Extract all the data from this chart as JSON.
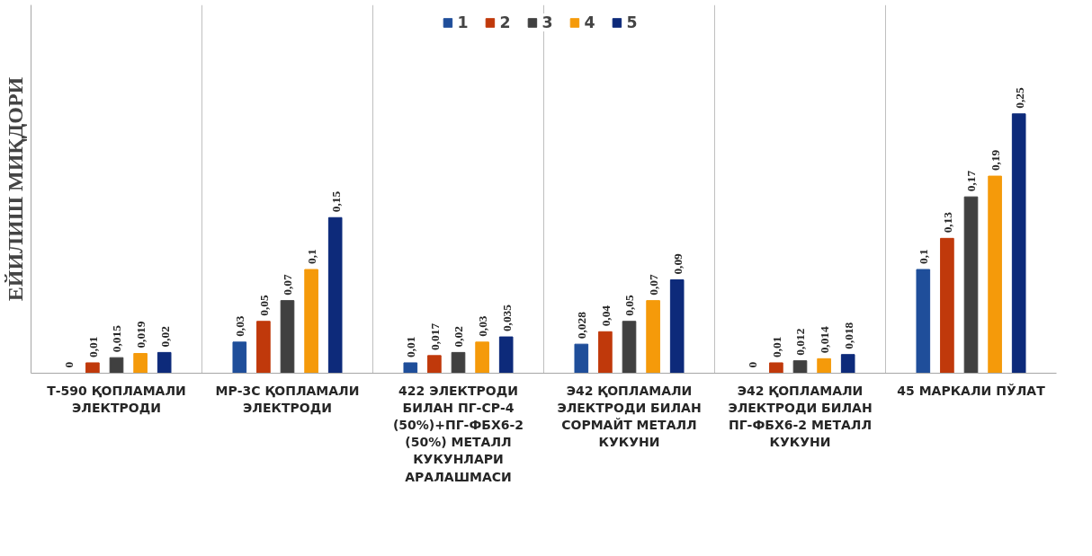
{
  "chart_data": {
    "type": "bar",
    "ylabel": "ЕЙИЛИШ МИҚДОРИ",
    "categories": [
      "Т-590 ҚОПЛАМАЛИ ЭЛЕКТРОДИ",
      "МР-3С ҚОПЛАМАЛИ ЭЛЕКТРОДИ",
      "422 ЭЛЕКТРОДИ БИЛАН ПГ-СР-4 (50%)+ПГ-ФБХ6-2 (50%) МЕТАЛЛ КУКУНЛАРИ АРАЛАШМАСИ",
      "Э42 ҚОПЛАМАЛИ ЭЛЕКТРОДИ БИЛАН СОРМАЙТ МЕТАЛЛ КУКУНИ",
      "Э42 ҚОПЛАМАЛИ ЭЛЕКТРОДИ БИЛАН ПГ-ФБХ6-2 МЕТАЛЛ КУКУНИ",
      "45 МАРКАЛИ ПЎЛАТ"
    ],
    "series": [
      {
        "name": "1",
        "color": "#1f4e9a",
        "values": [
          0,
          0.03,
          0.01,
          0.028,
          0,
          0.1
        ],
        "value_labels": [
          "0",
          "0,03",
          "0,01",
          "0,028",
          "0",
          "0,1"
        ]
      },
      {
        "name": "2",
        "color": "#c0390b",
        "values": [
          0.01,
          0.05,
          0.017,
          0.04,
          0.01,
          0.13
        ],
        "value_labels": [
          "0,01",
          "0,05",
          "0,017",
          "0,04",
          "0,01",
          "0,13"
        ]
      },
      {
        "name": "3",
        "color": "#404040",
        "values": [
          0.015,
          0.07,
          0.02,
          0.05,
          0.012,
          0.17
        ],
        "value_labels": [
          "0,015",
          "0,07",
          "0,02",
          "0,05",
          "0,012",
          "0,17"
        ]
      },
      {
        "name": "4",
        "color": "#f59a0a",
        "values": [
          0.019,
          0.1,
          0.03,
          0.07,
          0.014,
          0.19
        ],
        "value_labels": [
          "0,019",
          "0,1",
          "0,03",
          "0,07",
          "0,014",
          "0,19"
        ]
      },
      {
        "name": "5",
        "color": "#0d2a7a",
        "values": [
          0.02,
          0.15,
          0.035,
          0.09,
          0.018,
          0.25
        ],
        "value_labels": [
          "0,02",
          "0,15",
          "0,035",
          "0,09",
          "0,018",
          "0,25"
        ]
      }
    ],
    "grid": "x",
    "legend": "top"
  }
}
